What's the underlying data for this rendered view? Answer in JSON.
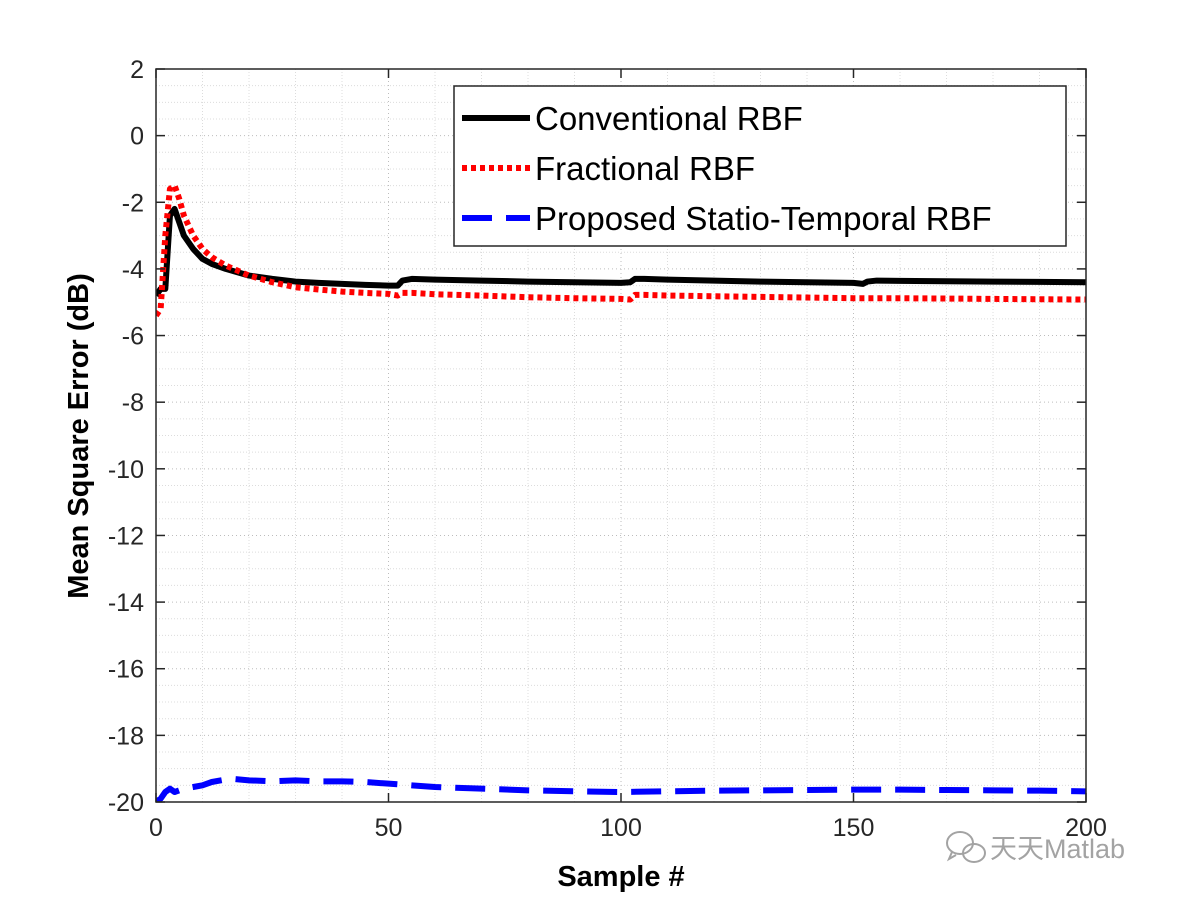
{
  "chart_data": {
    "type": "line",
    "title": "",
    "xlabel": "Sample #",
    "ylabel": "Mean Square Error (dB)",
    "xlim": [
      0,
      200
    ],
    "ylim": [
      -20,
      2
    ],
    "xticks": [
      0,
      50,
      100,
      150,
      200
    ],
    "yticks": [
      2,
      0,
      -2,
      -4,
      -6,
      -8,
      -10,
      -12,
      -14,
      -16,
      -18,
      -20
    ],
    "grid": "major and minor, dotted",
    "legend_position": "top-right",
    "series": [
      {
        "name": "Conventional RBF",
        "color": "#000000",
        "style": "solid",
        "x": [
          0,
          1,
          2,
          3,
          4,
          5,
          6,
          8,
          10,
          12,
          15,
          20,
          25,
          30,
          35,
          40,
          45,
          50,
          52,
          53,
          55,
          60,
          70,
          80,
          90,
          100,
          102,
          103,
          105,
          110,
          120,
          130,
          140,
          150,
          152,
          153,
          155,
          160,
          170,
          180,
          190,
          200
        ],
        "y": [
          -4.8,
          -4.6,
          -4.6,
          -2.4,
          -2.2,
          -2.6,
          -3.0,
          -3.4,
          -3.7,
          -3.85,
          -4.0,
          -4.2,
          -4.3,
          -4.38,
          -4.42,
          -4.45,
          -4.48,
          -4.5,
          -4.5,
          -4.35,
          -4.3,
          -4.32,
          -4.35,
          -4.38,
          -4.4,
          -4.42,
          -4.4,
          -4.3,
          -4.3,
          -4.32,
          -4.35,
          -4.38,
          -4.4,
          -4.42,
          -4.45,
          -4.38,
          -4.35,
          -4.36,
          -4.37,
          -4.38,
          -4.39,
          -4.4
        ]
      },
      {
        "name": "Fractional RBF",
        "color": "#ff0000",
        "style": "dotted",
        "x": [
          0,
          1,
          2,
          3,
          4,
          5,
          6,
          8,
          10,
          12,
          15,
          20,
          25,
          30,
          35,
          40,
          45,
          50,
          52,
          53,
          55,
          60,
          70,
          80,
          90,
          100,
          102,
          103,
          105,
          110,
          120,
          130,
          140,
          150,
          155,
          160,
          170,
          180,
          190,
          200
        ],
        "y": [
          -5.4,
          -5.2,
          -3.0,
          -1.6,
          -1.5,
          -1.9,
          -2.4,
          -3.0,
          -3.4,
          -3.65,
          -3.9,
          -4.2,
          -4.4,
          -4.55,
          -4.62,
          -4.68,
          -4.72,
          -4.75,
          -4.8,
          -4.72,
          -4.72,
          -4.76,
          -4.8,
          -4.85,
          -4.88,
          -4.9,
          -4.92,
          -4.78,
          -4.78,
          -4.8,
          -4.82,
          -4.84,
          -4.86,
          -4.88,
          -4.88,
          -4.88,
          -4.89,
          -4.9,
          -4.91,
          -4.92
        ]
      },
      {
        "name": "Proposed Statio-Temporal RBF",
        "color": "#0000ff",
        "style": "dashed",
        "x": [
          0,
          1,
          2,
          3,
          4,
          5,
          6,
          8,
          10,
          12,
          14,
          16,
          20,
          25,
          30,
          35,
          40,
          45,
          50,
          55,
          60,
          70,
          80,
          90,
          100,
          110,
          120,
          130,
          140,
          150,
          160,
          170,
          180,
          190,
          200
        ],
        "y": [
          -20.0,
          -19.9,
          -19.7,
          -19.6,
          -19.7,
          -19.65,
          -19.6,
          -19.55,
          -19.5,
          -19.4,
          -19.35,
          -19.3,
          -19.35,
          -19.38,
          -19.35,
          -19.38,
          -19.38,
          -19.4,
          -19.45,
          -19.5,
          -19.55,
          -19.6,
          -19.65,
          -19.68,
          -19.7,
          -19.68,
          -19.66,
          -19.65,
          -19.64,
          -19.63,
          -19.63,
          -19.64,
          -19.65,
          -19.66,
          -19.68
        ]
      }
    ]
  },
  "watermark": {
    "text": "天天Matlab",
    "icon": "wechat-icon"
  }
}
